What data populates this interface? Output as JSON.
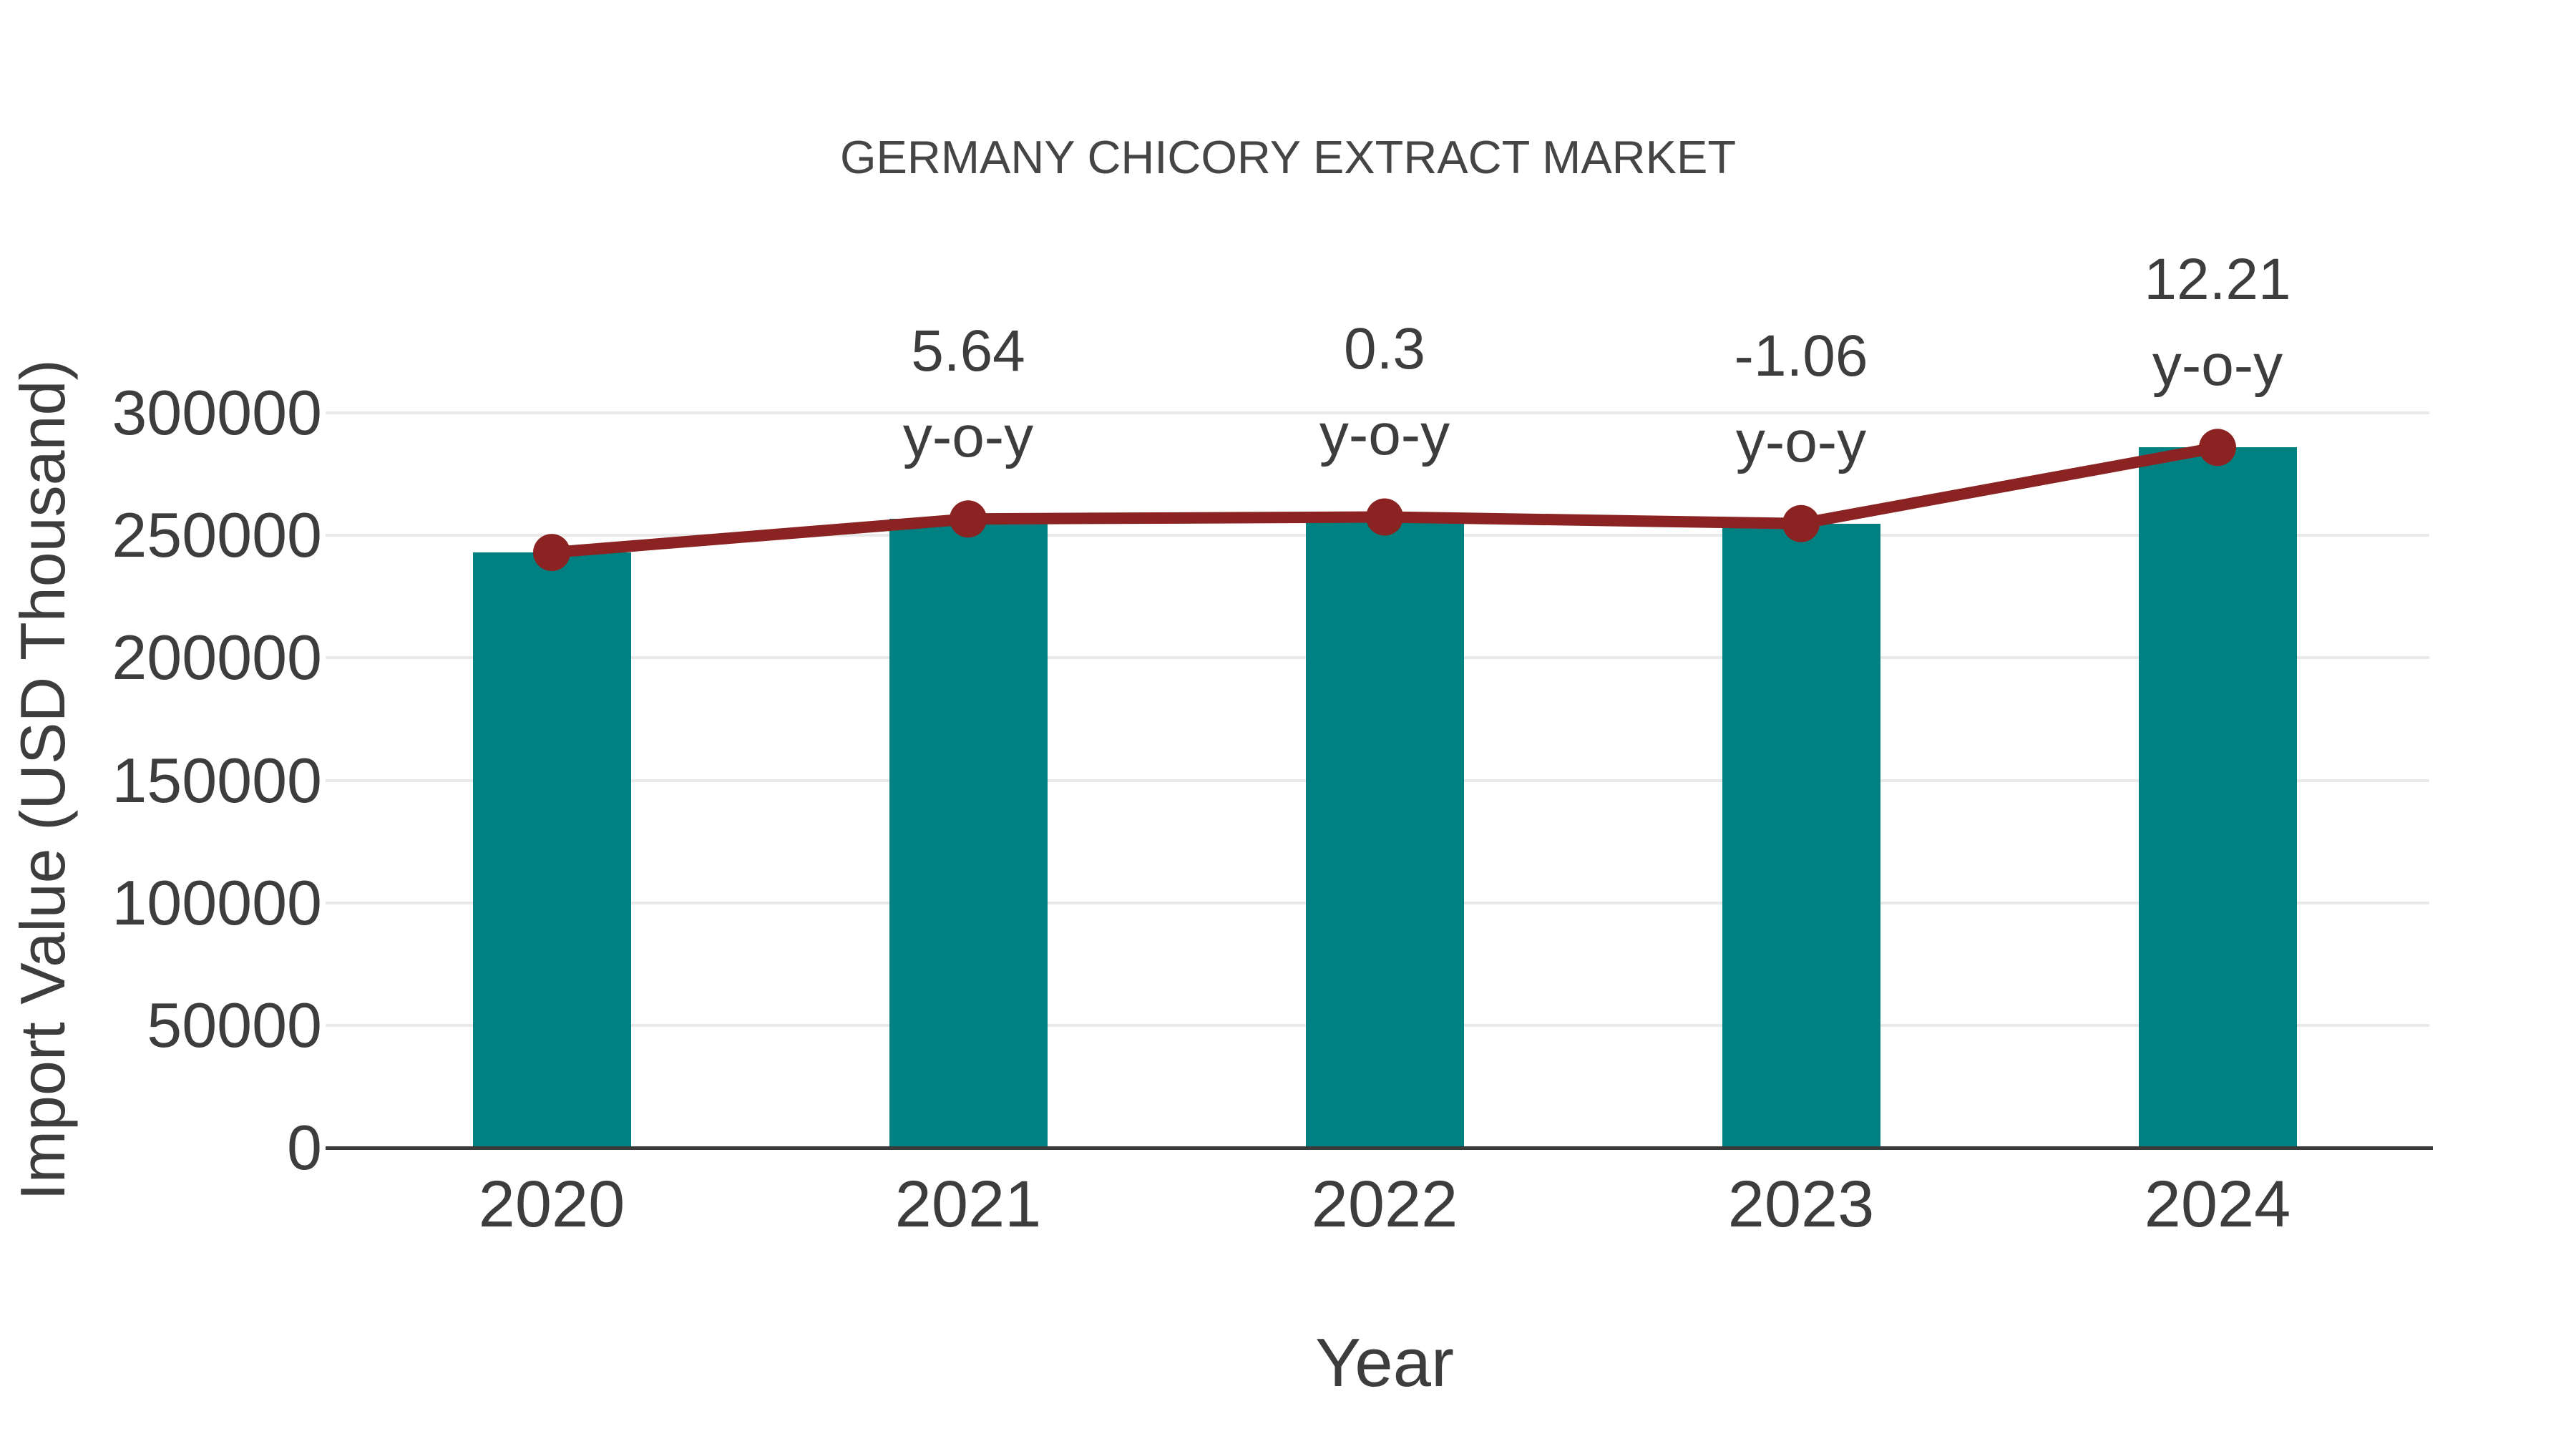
{
  "title": "GERMANY CHICORY EXTRACT MARKET",
  "colors": {
    "bar": "#008080",
    "line": "#8b2323",
    "text": "#3d3d3d",
    "title_text": "#454545",
    "gridline": "#e9e9e9",
    "axis": "#3a3a3a",
    "background": "#ffffff"
  },
  "chart_data": {
    "type": "bar",
    "title": "GERMANY CHICORY EXTRACT MARKET",
    "categories": [
      "2020",
      "2021",
      "2022",
      "2023",
      "2024"
    ],
    "series": [
      {
        "name": "Import Value bars",
        "type": "bar",
        "color": "#008080",
        "values": [
          243000,
          256700,
          257500,
          254800,
          285900
        ]
      },
      {
        "name": "Import Value trend line",
        "type": "line",
        "color": "#8b2323",
        "values": [
          243000,
          256700,
          257500,
          254800,
          285900
        ]
      }
    ],
    "annotations": [
      {
        "category": "2021",
        "value_label": "5.64",
        "suffix_label": "y-o-y"
      },
      {
        "category": "2022",
        "value_label": "0.3",
        "suffix_label": "y-o-y"
      },
      {
        "category": "2023",
        "value_label": "-1.06",
        "suffix_label": "y-o-y"
      },
      {
        "category": "2024",
        "value_label": "12.21",
        "suffix_label": "y-o-y"
      }
    ],
    "xlabel": "Year",
    "ylabel": "Import Value (USD Thousand)",
    "ylim": [
      0,
      300000
    ],
    "ytick_step": 50000,
    "ytick_labels": [
      "0",
      "50000",
      "100000",
      "150000",
      "200000",
      "250000",
      "300000"
    ],
    "grid": true,
    "legend_position": "none"
  }
}
